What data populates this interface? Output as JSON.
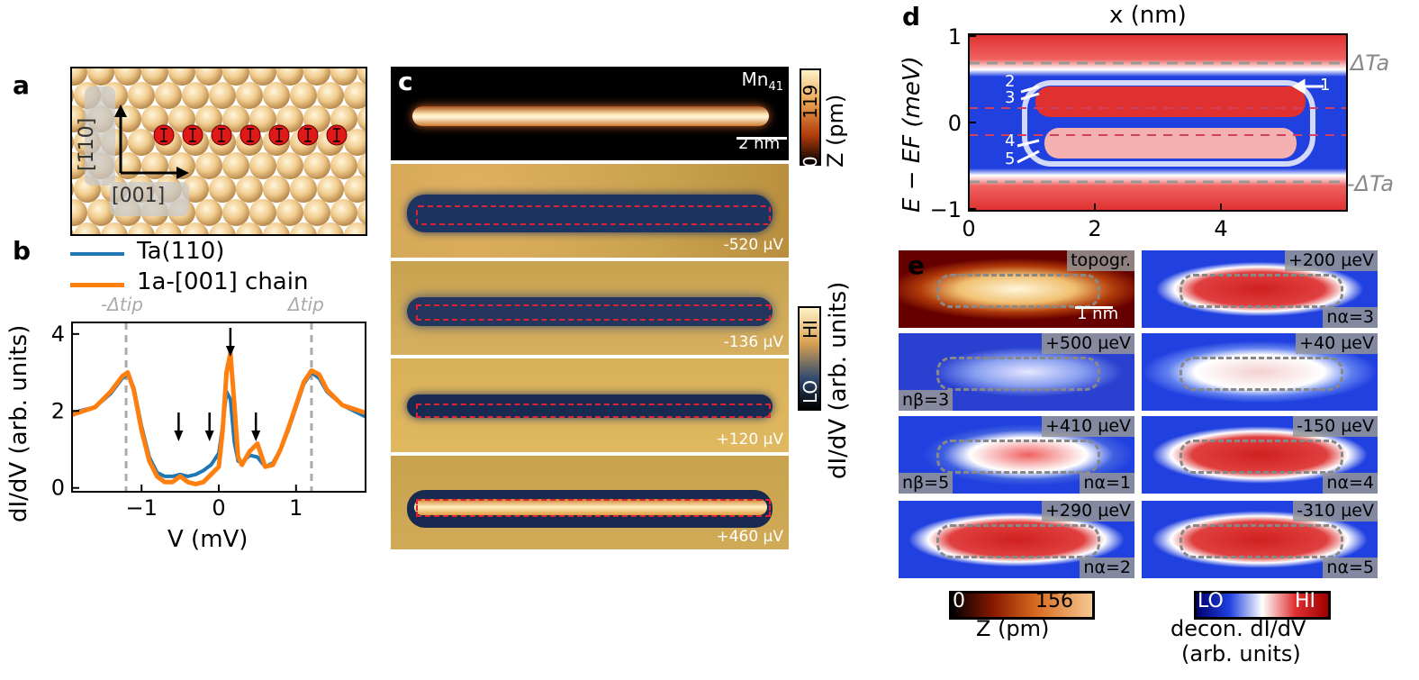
{
  "panels": {
    "a": "a",
    "b": "b",
    "c": "c",
    "d": "d",
    "e": "e"
  },
  "panel_a": {
    "dir_vertical": "[1̄10]",
    "dir_horizontal": "[001]",
    "atom_count": 7
  },
  "panel_b": {
    "legend": [
      {
        "name": "Ta(110)",
        "color": "#1f77b4"
      },
      {
        "name": "1a-[001] chain",
        "color": "#ff7f0e"
      }
    ],
    "gap_left_label": "-Δtip",
    "gap_right_label": "Δtip",
    "xlabel": "V (mV)",
    "ylabel": "dI/dV (arb. units)",
    "xticks": [
      "−1",
      "0",
      "1"
    ],
    "yticks": [
      "0",
      "2",
      "4"
    ]
  },
  "chart_data": {
    "type": "line",
    "xlabel": "V (mV)",
    "ylabel": "dI/dV (arb. units)",
    "xlim": [
      -1.9,
      1.9
    ],
    "ylim": [
      -0.1,
      4.3
    ],
    "xticks": [
      -1,
      0,
      1
    ],
    "yticks": [
      0,
      2,
      4
    ],
    "gap_lines": [
      -1.2,
      1.2
    ],
    "arrows_at": [
      -0.52,
      -0.12,
      0.15,
      0.48
    ],
    "series": [
      {
        "name": "Ta(110)",
        "color": "#1f77b4",
        "x": [
          -1.9,
          -1.6,
          -1.4,
          -1.25,
          -1.18,
          -1.1,
          -1.0,
          -0.9,
          -0.8,
          -0.7,
          -0.6,
          -0.5,
          -0.4,
          -0.3,
          -0.2,
          -0.1,
          0.0,
          0.05,
          0.1,
          0.15,
          0.2,
          0.25,
          0.3,
          0.4,
          0.5,
          0.6,
          0.7,
          0.8,
          0.9,
          1.0,
          1.1,
          1.2,
          1.3,
          1.4,
          1.6,
          1.9
        ],
        "y": [
          1.95,
          2.1,
          2.45,
          2.85,
          2.95,
          2.6,
          1.6,
          0.8,
          0.4,
          0.3,
          0.3,
          0.35,
          0.3,
          0.35,
          0.45,
          0.6,
          0.9,
          1.6,
          2.5,
          2.3,
          1.2,
          0.7,
          0.65,
          0.85,
          0.8,
          0.55,
          0.65,
          1.0,
          1.5,
          2.1,
          2.7,
          3.0,
          2.85,
          2.5,
          2.15,
          1.85
        ]
      },
      {
        "name": "1a-[001] chain",
        "color": "#ff7f0e",
        "x": [
          -1.9,
          -1.6,
          -1.4,
          -1.25,
          -1.18,
          -1.1,
          -1.0,
          -0.9,
          -0.8,
          -0.7,
          -0.6,
          -0.5,
          -0.4,
          -0.3,
          -0.2,
          -0.1,
          0.0,
          0.05,
          0.1,
          0.15,
          0.2,
          0.25,
          0.3,
          0.4,
          0.5,
          0.6,
          0.7,
          0.8,
          0.9,
          1.0,
          1.1,
          1.2,
          1.3,
          1.4,
          1.6,
          1.9
        ],
        "y": [
          1.9,
          2.1,
          2.5,
          2.9,
          3.0,
          2.55,
          1.5,
          0.7,
          0.3,
          0.15,
          0.15,
          0.3,
          0.15,
          0.1,
          0.15,
          0.35,
          0.55,
          1.5,
          3.0,
          3.5,
          2.2,
          0.8,
          0.6,
          0.95,
          1.15,
          0.55,
          0.6,
          1.0,
          1.55,
          2.15,
          2.75,
          3.05,
          2.95,
          2.55,
          2.15,
          1.95
        ]
      }
    ]
  },
  "panel_c": {
    "species": "Mn41",
    "species_base": "Mn",
    "species_sub": "41",
    "scalebar": "2 nm",
    "z_colorbar": {
      "min": "0",
      "max": "119",
      "label": "Z (pm)"
    },
    "didv_colorbar": {
      "lo": "LO",
      "hi": "HI",
      "label": "dI/dV (arb. units)"
    },
    "biases": [
      "-520 µV",
      "-136 µV",
      "+120 µV",
      "+460 µV"
    ]
  },
  "panel_d": {
    "xlabel": "x (nm)",
    "ylabel": "E − EF (meV)",
    "xticks": [
      "0",
      "2",
      "4"
    ],
    "yticks": [
      "1",
      "0",
      "−1"
    ],
    "gap_top": "ΔTa",
    "gap_bottom": "-ΔTa",
    "state_labels": [
      "1",
      "2",
      "3",
      "4",
      "5"
    ]
  },
  "panel_e": {
    "tiles": [
      {
        "top": "topogr.",
        "bottom": "",
        "left": "",
        "scalebar": "1 nm"
      },
      {
        "top": "+200 µeV",
        "bottom": "nα=3",
        "left": ""
      },
      {
        "top": "+500 µeV",
        "bottom": "",
        "left": "nβ=3"
      },
      {
        "top": "+40 µeV",
        "bottom": "",
        "left": ""
      },
      {
        "top": "+410 µeV",
        "bottom": "nα=1",
        "left": "nβ=5"
      },
      {
        "top": "-150 µeV",
        "bottom": "nα=4",
        "left": ""
      },
      {
        "top": "+290 µeV",
        "bottom": "nα=2",
        "left": ""
      },
      {
        "top": "-310 µeV",
        "bottom": "nα=5",
        "left": ""
      }
    ],
    "z_colorbar": {
      "min": "0",
      "max": "156",
      "label": "Z (pm)"
    },
    "decon_colorbar": {
      "lo": "LO",
      "hi": "HI",
      "label1": "decon. dI/dV",
      "label2": "(arb. units)"
    }
  }
}
